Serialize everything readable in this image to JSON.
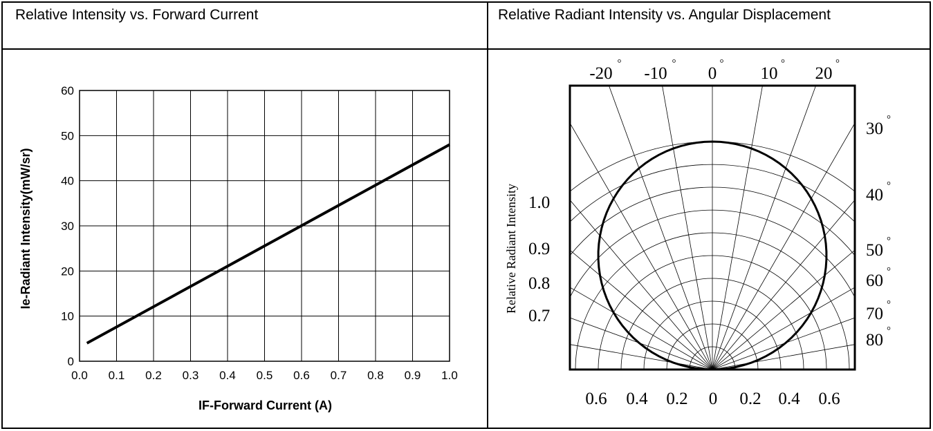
{
  "headers": {
    "left": "Relative Intensity vs. Forward Current",
    "right": "Relative Radiant Intensity vs. Angular Displacement"
  },
  "chart_data": [
    {
      "type": "line",
      "xlabel": "IF-Forward Current (A)",
      "ylabel": "Ie-Radiant Intensity(mW/sr)",
      "xlim": [
        0.0,
        1.0
      ],
      "ylim": [
        0,
        60
      ],
      "x_ticks": [
        "0.0",
        "0.1",
        "0.2",
        "0.3",
        "0.4",
        "0.5",
        "0.6",
        "0.7",
        "0.8",
        "0.9",
        "1.0"
      ],
      "y_ticks": [
        "0",
        "10",
        "20",
        "30",
        "40",
        "50",
        "60"
      ],
      "grid": true,
      "series": [
        {
          "x": [
            0.02,
            1.0
          ],
          "y": [
            4,
            48
          ]
        }
      ]
    },
    {
      "type": "polar",
      "ylabel": "Relative Radiant Intensity",
      "top_angle_labels": [
        "-20",
        "-10",
        "0",
        "10",
        "20"
      ],
      "right_angle_labels": [
        "30",
        "40",
        "50",
        "60",
        "70",
        "80"
      ],
      "left_radius_labels": [
        "1.0",
        "0.9",
        "0.8",
        "0.7"
      ],
      "bottom_labels": [
        "0.6",
        "0.4",
        "0.2",
        "0",
        "0.2",
        "0.4",
        "0.6"
      ],
      "degree_symbol": "°",
      "grid_angle_step_deg": 10,
      "grid_radius_step": 0.1,
      "max_radius": 1.0,
      "pattern": {
        "model": "cos",
        "peak": 1.0
      }
    }
  ]
}
